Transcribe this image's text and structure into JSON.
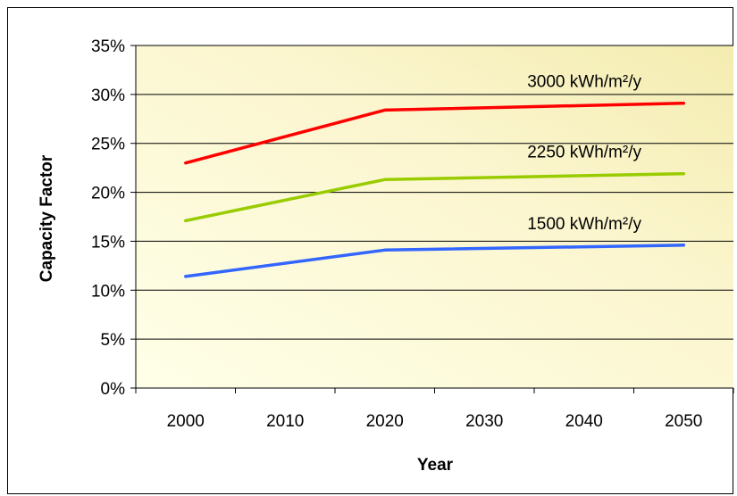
{
  "chart_data": {
    "type": "line",
    "title": "",
    "xlabel": "Year",
    "ylabel": "Capacity Factor",
    "x": [
      2000,
      2010,
      2020,
      2030,
      2040,
      2050
    ],
    "xticks": [
      "2000",
      "2010",
      "2020",
      "2030",
      "2040",
      "2050"
    ],
    "yticks": [
      "0%",
      "5%",
      "10%",
      "15%",
      "20%",
      "25%",
      "30%",
      "35%"
    ],
    "ylim": [
      0,
      35
    ],
    "grid": "horizontal",
    "legend": "inline labels",
    "series": [
      {
        "name": "3000 kWh/m²/y",
        "color": "#ff0000",
        "points": [
          [
            2000,
            23.0
          ],
          [
            2020,
            28.4
          ],
          [
            2050,
            29.1
          ]
        ]
      },
      {
        "name": "2250 kWh/m²/y",
        "color": "#99cc00",
        "points": [
          [
            2000,
            17.1
          ],
          [
            2020,
            21.3
          ],
          [
            2050,
            21.9
          ]
        ]
      },
      {
        "name": "1500 kWh/m²/y",
        "color": "#3366ff",
        "points": [
          [
            2000,
            11.4
          ],
          [
            2020,
            14.1
          ],
          [
            2050,
            14.6
          ]
        ]
      }
    ]
  }
}
